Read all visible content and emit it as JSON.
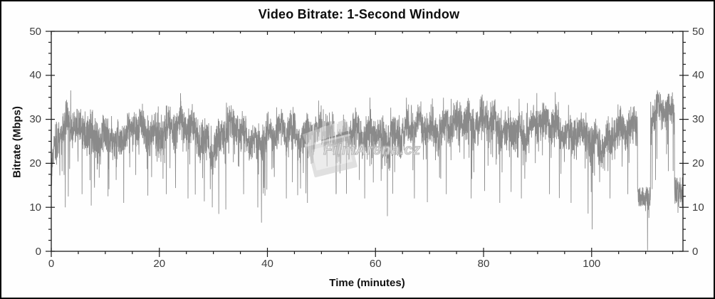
{
  "figure": {
    "title": "Video Bitrate: 1-Second Window"
  },
  "axes": {
    "x": {
      "label": "Time (minutes)",
      "min": 0,
      "max": 116.9,
      "major_ticks": [
        0,
        20,
        40,
        60,
        80,
        100
      ],
      "minor_step": 5
    },
    "y_left": {
      "label": "Bitrate (Mbps)",
      "min": 0,
      "max": 50,
      "major_ticks": [
        0,
        10,
        20,
        30,
        40,
        50
      ],
      "minor_step": 2.5
    },
    "y_right": {
      "major_ticks": [
        0,
        10,
        20,
        30,
        40,
        50
      ],
      "minor_step": 2.5
    }
  },
  "watermark": {
    "text": "FilmArena.cz",
    "icon": "clapperboard-icon"
  },
  "colors": {
    "line": "#8a8a8a",
    "frame": "#1c1c1c",
    "tick": "#1c1c1c",
    "tick_label": "#3d3d3d",
    "title": "#0d0d0d",
    "background": "#fefefe",
    "watermark": "#cfcfcf"
  },
  "chart_data": {
    "type": "line",
    "title": "Video Bitrate: 1-Second Window",
    "xlabel": "Time (minutes)",
    "ylabel": "Bitrate (Mbps)",
    "xlim": [
      0,
      116.9
    ],
    "ylim": [
      0,
      50
    ],
    "grid": false,
    "legend": "none",
    "series_name": "video-bitrate-1-second-window",
    "sample_interval_seconds": 1,
    "value_cap_mbps": 36.8,
    "start_value_mbps": 17.5,
    "envelope_step_minutes": 2,
    "envelope_mean_mbps": [
      21,
      28,
      29,
      27,
      26,
      26,
      24,
      27,
      28,
      27,
      26,
      28,
      29,
      28,
      25,
      22,
      28,
      29,
      26,
      24,
      26,
      28,
      27,
      26,
      27,
      28,
      26,
      25,
      27,
      26,
      27,
      25,
      26,
      28,
      29,
      28,
      27,
      29,
      30,
      29,
      30,
      29,
      27,
      28,
      26,
      29,
      30,
      28,
      26,
      27,
      25,
      24,
      27,
      28,
      28,
      30,
      32,
      32,
      30
    ],
    "noise_amplitude_mbps": 5.2,
    "dip_events": [
      {
        "t": 2.6,
        "v": 10
      },
      {
        "t": 5.7,
        "v": 13
      },
      {
        "t": 10.5,
        "v": 12.5
      },
      {
        "t": 13.4,
        "v": 11
      },
      {
        "t": 21.3,
        "v": 13
      },
      {
        "t": 25.3,
        "v": 12
      },
      {
        "t": 29.8,
        "v": 10
      },
      {
        "t": 31.0,
        "v": 8.5
      },
      {
        "t": 32.3,
        "v": 9.5
      },
      {
        "t": 35.6,
        "v": 13
      },
      {
        "t": 38.9,
        "v": 6.5
      },
      {
        "t": 43.5,
        "v": 12
      },
      {
        "t": 47.4,
        "v": 11
      },
      {
        "t": 52.7,
        "v": 13
      },
      {
        "t": 58.0,
        "v": 12
      },
      {
        "t": 62.2,
        "v": 8
      },
      {
        "t": 67.2,
        "v": 12
      },
      {
        "t": 73.1,
        "v": 13
      },
      {
        "t": 77.7,
        "v": 12
      },
      {
        "t": 83.0,
        "v": 11
      },
      {
        "t": 87.0,
        "v": 12
      },
      {
        "t": 92.2,
        "v": 13
      },
      {
        "t": 96.2,
        "v": 11
      },
      {
        "t": 100.1,
        "v": 5
      },
      {
        "t": 103.4,
        "v": 12
      },
      {
        "t": 106.7,
        "v": 13
      }
    ],
    "low_segments": [
      {
        "from": 108.5,
        "to": 110.9,
        "level": 12.5,
        "jitter": 4.5
      },
      {
        "from": 115.35,
        "to": 116.95,
        "level": 13.5,
        "jitter": 7
      }
    ],
    "zero_drop_minutes": 110.35,
    "seed": 20107
  }
}
